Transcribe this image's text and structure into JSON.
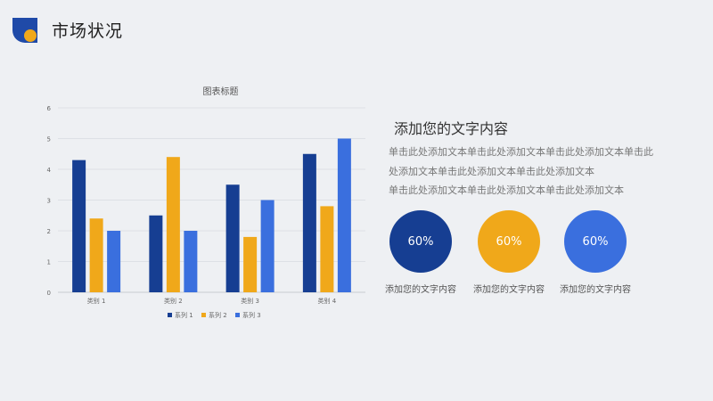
{
  "header": {
    "title": "市场状况",
    "logo_colors": [
      "#1f4aa8",
      "#f0a81a"
    ]
  },
  "text_panel": {
    "subtitle": "添加您的文字内容",
    "lines": [
      "单击此处添加文本单击此处添加文本单击此处添加文本单击此",
      "处添加文本单击此处添加文本单击此处添加文本",
      "单击此处添加文本单击此处添加文本单击此处添加文本"
    ]
  },
  "circles": [
    {
      "value": "60%",
      "label": "添加您的文字内容",
      "color": "#163e92"
    },
    {
      "value": "60%",
      "label": "添加您的文字内容",
      "color": "#f0a81a"
    },
    {
      "value": "60%",
      "label": "添加您的文字内容",
      "color": "#3a6fde"
    }
  ],
  "chart_data": {
    "type": "bar",
    "title": "图表标题",
    "categories": [
      "类别 1",
      "类别 2",
      "类别 3",
      "类别 4"
    ],
    "series": [
      {
        "name": "系列 1",
        "values": [
          4.3,
          2.5,
          3.5,
          4.5
        ],
        "color": "#163e92"
      },
      {
        "name": "系列 2",
        "values": [
          2.4,
          4.4,
          1.8,
          2.8
        ],
        "color": "#f0a81a"
      },
      {
        "name": "系列 3",
        "values": [
          2.0,
          2.0,
          3.0,
          5.0
        ],
        "color": "#3a6fde"
      }
    ],
    "ylim": [
      0,
      6
    ],
    "yticks": [
      0,
      1,
      2,
      3,
      4,
      5,
      6
    ],
    "grid": true,
    "legend": "bottom"
  }
}
